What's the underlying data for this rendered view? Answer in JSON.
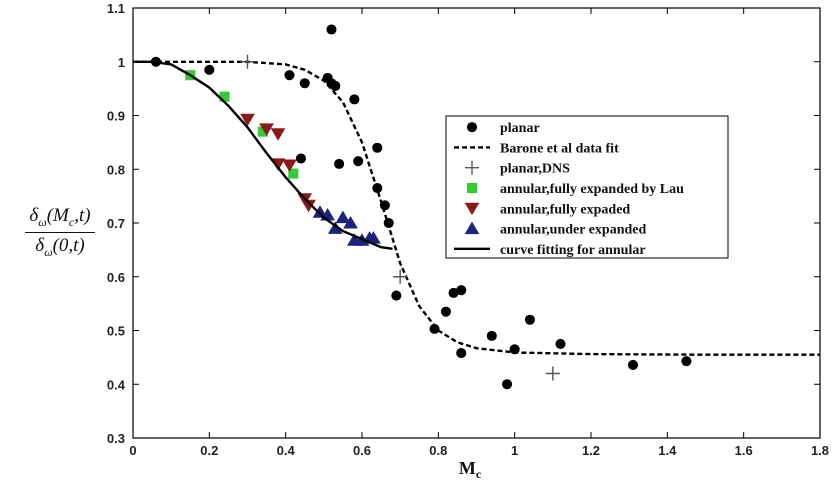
{
  "chart_data": {
    "type": "scatter",
    "xlabel": "Mc",
    "ylabel": {
      "numerator": "δω(Mc,t)",
      "denominator": "δω(0,t)"
    },
    "xlim": [
      0,
      1.8
    ],
    "ylim": [
      0.3,
      1.1
    ],
    "xticks": [
      "0",
      "0.2",
      "0.4",
      "0.6",
      "0.8",
      "1",
      "1.2",
      "1.4",
      "1.6",
      "1.8"
    ],
    "yticks": [
      "0.3",
      "0.4",
      "0.5",
      "0.6",
      "0.7",
      "0.8",
      "0.9",
      "1",
      "1.1"
    ],
    "grid": false,
    "legend_position": "center-right",
    "series": [
      {
        "name": "planar",
        "marker": "circle",
        "color": "#000000",
        "points": [
          [
            0.06,
            1.0
          ],
          [
            0.2,
            0.985
          ],
          [
            0.41,
            0.975
          ],
          [
            0.51,
            0.97
          ],
          [
            0.52,
            1.06
          ],
          [
            0.53,
            0.955
          ],
          [
            0.45,
            0.96
          ],
          [
            0.52,
            0.96
          ],
          [
            0.58,
            0.93
          ],
          [
            0.64,
            0.84
          ],
          [
            0.66,
            0.733
          ],
          [
            0.44,
            0.82
          ],
          [
            0.54,
            0.81
          ],
          [
            0.59,
            0.815
          ],
          [
            0.64,
            0.765
          ],
          [
            0.67,
            0.7
          ],
          [
            0.69,
            0.565
          ],
          [
            0.79,
            0.503
          ],
          [
            0.82,
            0.535
          ],
          [
            0.84,
            0.57
          ],
          [
            0.86,
            0.575
          ],
          [
            0.86,
            0.458
          ],
          [
            0.94,
            0.49
          ],
          [
            0.98,
            0.4
          ],
          [
            1.0,
            0.465
          ],
          [
            1.04,
            0.52
          ],
          [
            1.12,
            0.475
          ],
          [
            1.31,
            0.436
          ],
          [
            1.45,
            0.443
          ]
        ]
      },
      {
        "name": "Barone et al data fit",
        "line": "dashed",
        "color": "#000000",
        "points": [
          [
            0,
            1.0
          ],
          [
            0.2,
            1.0
          ],
          [
            0.3,
            1.0
          ],
          [
            0.4,
            0.995
          ],
          [
            0.45,
            0.985
          ],
          [
            0.5,
            0.965
          ],
          [
            0.55,
            0.925
          ],
          [
            0.6,
            0.85
          ],
          [
            0.65,
            0.74
          ],
          [
            0.7,
            0.625
          ],
          [
            0.75,
            0.545
          ],
          [
            0.8,
            0.5
          ],
          [
            0.85,
            0.478
          ],
          [
            0.9,
            0.467
          ],
          [
            1.0,
            0.459
          ],
          [
            1.2,
            0.456
          ],
          [
            1.5,
            0.455
          ],
          [
            1.8,
            0.455
          ]
        ]
      },
      {
        "name": "planar,DNS",
        "marker": "plus",
        "color": "#555555",
        "points": [
          [
            0.3,
            1.0
          ],
          [
            0.7,
            0.6
          ],
          [
            1.1,
            0.42
          ]
        ]
      },
      {
        "name": "annular,fully expanded by Lau",
        "marker": "square",
        "color": "#33cc33",
        "points": [
          [
            0.15,
            0.975
          ],
          [
            0.24,
            0.935
          ],
          [
            0.34,
            0.87
          ],
          [
            0.42,
            0.792
          ]
        ]
      },
      {
        "name": "annular,fully expaded",
        "marker": "triangle-down",
        "color": "#8b1a1a",
        "points": [
          [
            0.3,
            0.893
          ],
          [
            0.35,
            0.875
          ],
          [
            0.38,
            0.866
          ],
          [
            0.38,
            0.81
          ],
          [
            0.41,
            0.808
          ],
          [
            0.45,
            0.745
          ],
          [
            0.46,
            0.733
          ]
        ]
      },
      {
        "name": "annular,under expanded",
        "marker": "triangle-up",
        "color": "#1a237e",
        "points": [
          [
            0.49,
            0.72
          ],
          [
            0.51,
            0.715
          ],
          [
            0.53,
            0.69
          ],
          [
            0.55,
            0.71
          ],
          [
            0.57,
            0.7
          ],
          [
            0.58,
            0.668
          ],
          [
            0.6,
            0.668
          ],
          [
            0.62,
            0.672
          ],
          [
            0.63,
            0.672
          ]
        ]
      },
      {
        "name": "curve fitting for annular",
        "line": "solid",
        "color": "#000000",
        "points": [
          [
            0,
            1.0
          ],
          [
            0.05,
            1.0
          ],
          [
            0.1,
            0.995
          ],
          [
            0.15,
            0.975
          ],
          [
            0.2,
            0.952
          ],
          [
            0.25,
            0.918
          ],
          [
            0.3,
            0.878
          ],
          [
            0.35,
            0.83
          ],
          [
            0.4,
            0.785
          ],
          [
            0.45,
            0.745
          ],
          [
            0.5,
            0.71
          ],
          [
            0.55,
            0.685
          ],
          [
            0.6,
            0.67
          ],
          [
            0.65,
            0.655
          ],
          [
            0.68,
            0.652
          ]
        ]
      }
    ]
  }
}
